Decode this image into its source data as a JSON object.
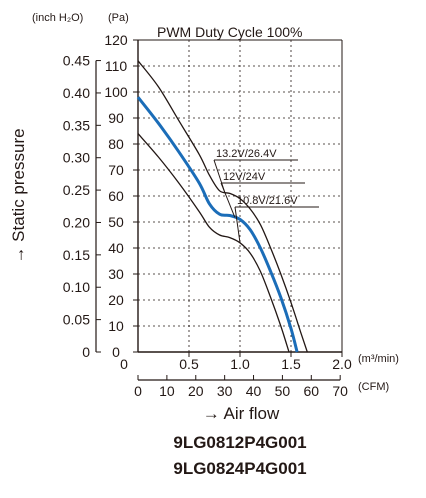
{
  "chart_data": {
    "type": "line",
    "title": "PWM Duty Cycle 100%",
    "ylabel": "→ Static pressure",
    "xlabel": "→ Air flow",
    "x_unit": "(m³/min)",
    "x2_unit": "(CFM)",
    "y_unit": "(Pa)",
    "y2_unit": "(inch H₂O)",
    "xlim": [
      0,
      2.0
    ],
    "ylim": [
      0,
      120
    ],
    "x_ticks": [
      "0",
      "0.5",
      "1.0",
      "1.5",
      "2.0"
    ],
    "x_tick_values": [
      0,
      0.5,
      1.0,
      1.5,
      2.0
    ],
    "x2_ticks": [
      "0",
      "10",
      "20",
      "30",
      "40",
      "50",
      "60",
      "70"
    ],
    "x2_tick_values": [
      0,
      10,
      20,
      30,
      40,
      50,
      60,
      70
    ],
    "y_ticks": [
      "0",
      "10",
      "20",
      "30",
      "40",
      "50",
      "60",
      "70",
      "80",
      "90",
      "100",
      "110",
      "120"
    ],
    "y_tick_values": [
      0,
      10,
      20,
      30,
      40,
      50,
      60,
      70,
      80,
      90,
      100,
      110,
      120
    ],
    "y2_ticks": [
      "0",
      "0.05",
      "0.10",
      "0.15",
      "0.20",
      "0.25",
      "0.30",
      "0.35",
      "0.40",
      "0.45"
    ],
    "y2_tick_values": [
      0,
      0.05,
      0.1,
      0.15,
      0.2,
      0.25,
      0.3,
      0.35,
      0.4,
      0.45
    ],
    "grid": true,
    "series": [
      {
        "name": "13.2V/26.4V",
        "color": "#231815",
        "x": [
          0,
          0.2,
          0.4,
          0.6,
          0.7,
          0.8,
          0.9,
          1.0,
          1.1,
          1.2,
          1.3,
          1.4,
          1.5,
          1.6,
          1.66
        ],
        "y": [
          112,
          102,
          89,
          76,
          68,
          62,
          61,
          59,
          55,
          49,
          40,
          30,
          19,
          7,
          0
        ]
      },
      {
        "name": "12V/24V",
        "color": "#1b6db8",
        "x": [
          0,
          0.2,
          0.4,
          0.6,
          0.7,
          0.8,
          0.9,
          1.0,
          1.1,
          1.2,
          1.3,
          1.4,
          1.5,
          1.56
        ],
        "y": [
          98,
          88,
          77,
          65,
          57,
          53,
          52.5,
          51,
          47,
          40,
          31,
          21,
          9,
          0
        ]
      },
      {
        "name": "10.8V/21.6V",
        "color": "#231815",
        "x": [
          0,
          0.2,
          0.4,
          0.6,
          0.7,
          0.8,
          0.9,
          1.0,
          1.1,
          1.2,
          1.3,
          1.4,
          1.48
        ],
        "y": [
          84,
          75,
          65,
          54,
          48,
          45,
          44,
          42,
          38,
          31,
          21,
          10,
          0
        ]
      }
    ]
  },
  "models": [
    "9LG0812P4G001",
    "9LG0824P4G001"
  ]
}
